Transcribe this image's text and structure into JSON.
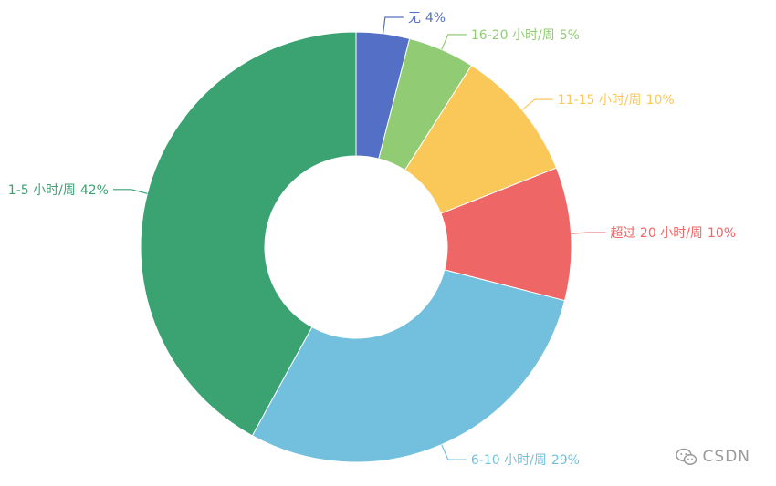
{
  "chart_data": {
    "type": "pie",
    "donut": true,
    "legend": "none",
    "slices": [
      {
        "label": "无",
        "value": 4,
        "value_text": "4%",
        "color": "#5470c6"
      },
      {
        "label": "16-20 小时/周",
        "value": 5,
        "value_text": "5%",
        "color": "#91cc75"
      },
      {
        "label": "11-15 小时/周",
        "value": 10,
        "value_text": "10%",
        "color": "#fac858"
      },
      {
        "label": "超过 20 小时/周",
        "value": 10,
        "value_text": "10%",
        "color": "#ee6666"
      },
      {
        "label": "6-10 小时/周",
        "value": 29,
        "value_text": "29%",
        "color": "#73c0de"
      },
      {
        "label": "1-5 小时/周",
        "value": 42,
        "value_text": "42%",
        "color": "#3ba272"
      }
    ]
  },
  "watermark": {
    "text": "CSDN",
    "icon": "wechat-icon"
  }
}
